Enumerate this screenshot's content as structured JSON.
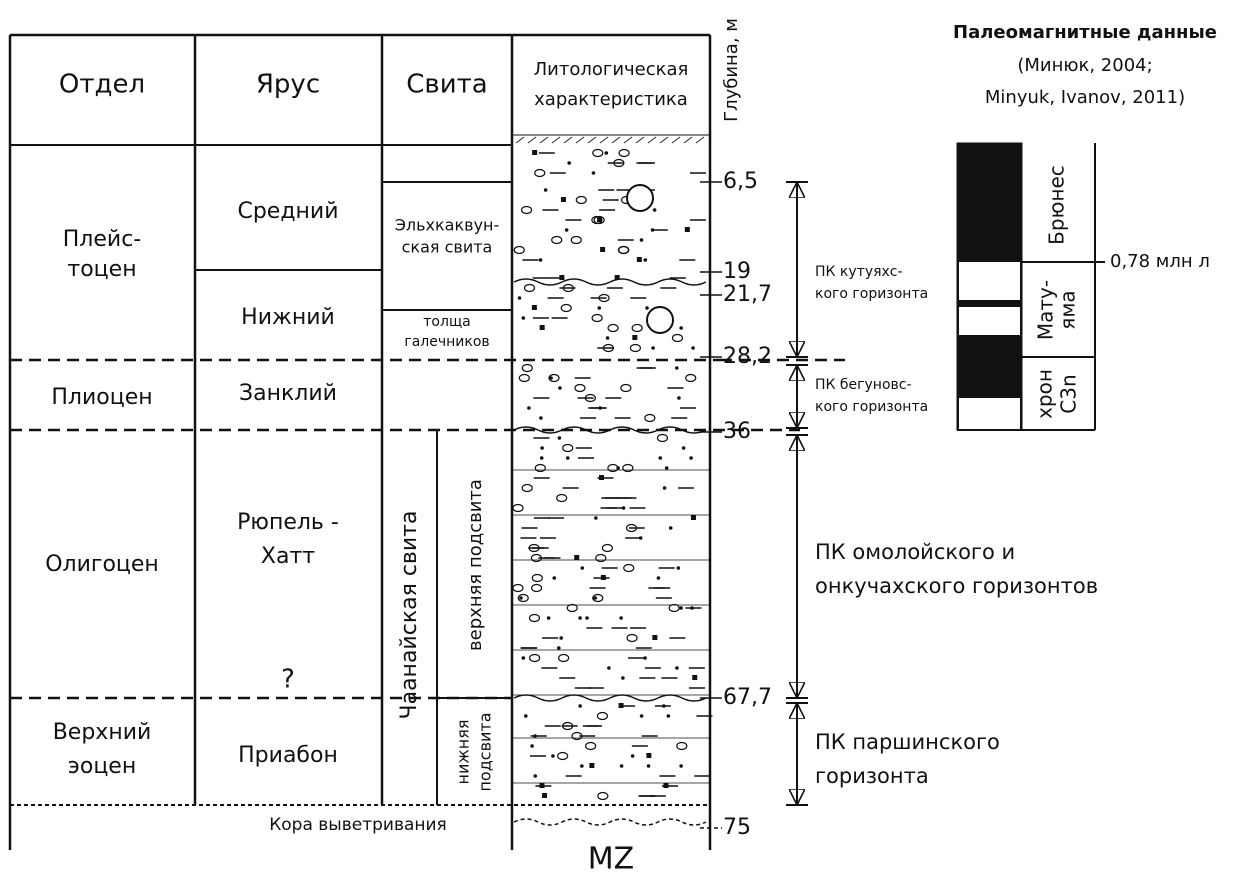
{
  "header": {
    "otdel": "Отдел",
    "yarus": "Ярус",
    "svita": "Свита",
    "lithology": [
      "Литологическая",
      "характеристика"
    ],
    "depth": "Глубина, м"
  },
  "otdel": [
    [
      "Плейс-",
      "тоцен"
    ],
    [
      "Плиоцен"
    ],
    [
      "Олигоцен"
    ],
    [
      "Верхний",
      "эоцен"
    ]
  ],
  "yarus": [
    [
      "Средний"
    ],
    [
      "Нижний"
    ],
    [
      "Занклий"
    ],
    [
      "Рюпель -",
      "Хатт"
    ],
    [
      "Приабон"
    ]
  ],
  "yarus_uncertain": "?",
  "svita": {
    "elkh": [
      "Эльхкаквун-",
      "ская свита"
    ],
    "pebbles": [
      "толща",
      "галечников"
    ],
    "chaanai": "Чаанайская свита",
    "upper": "верхняя подсвита",
    "lower": [
      "нижняя",
      "подсвита"
    ]
  },
  "weathering_crust": "Кора выветривания",
  "basement": "MZ",
  "depths": [
    "6,5",
    "19",
    "21,7",
    "28,2",
    "36",
    "67,7",
    "75"
  ],
  "complexes": [
    [
      "ПК кутуяхс-",
      "кого горизонта"
    ],
    [
      "ПК бегуновс-",
      "кого горизонта"
    ],
    [
      "ПК омолойского и",
      "онкучахского горизонтов"
    ],
    [
      "ПК паршинского",
      "горизонта"
    ]
  ],
  "paleomag": {
    "title": "Палеомагнитные данные",
    "reference": [
      "(Минюк, 2004;",
      "Minyuk, Ivanov,  2011)"
    ],
    "chrons": [
      [
        "Брюнес"
      ],
      [
        "Мату-",
        "яма"
      ],
      [
        "хрон",
        "C3n"
      ]
    ],
    "boundary_age": "0,78 млн л"
  }
}
